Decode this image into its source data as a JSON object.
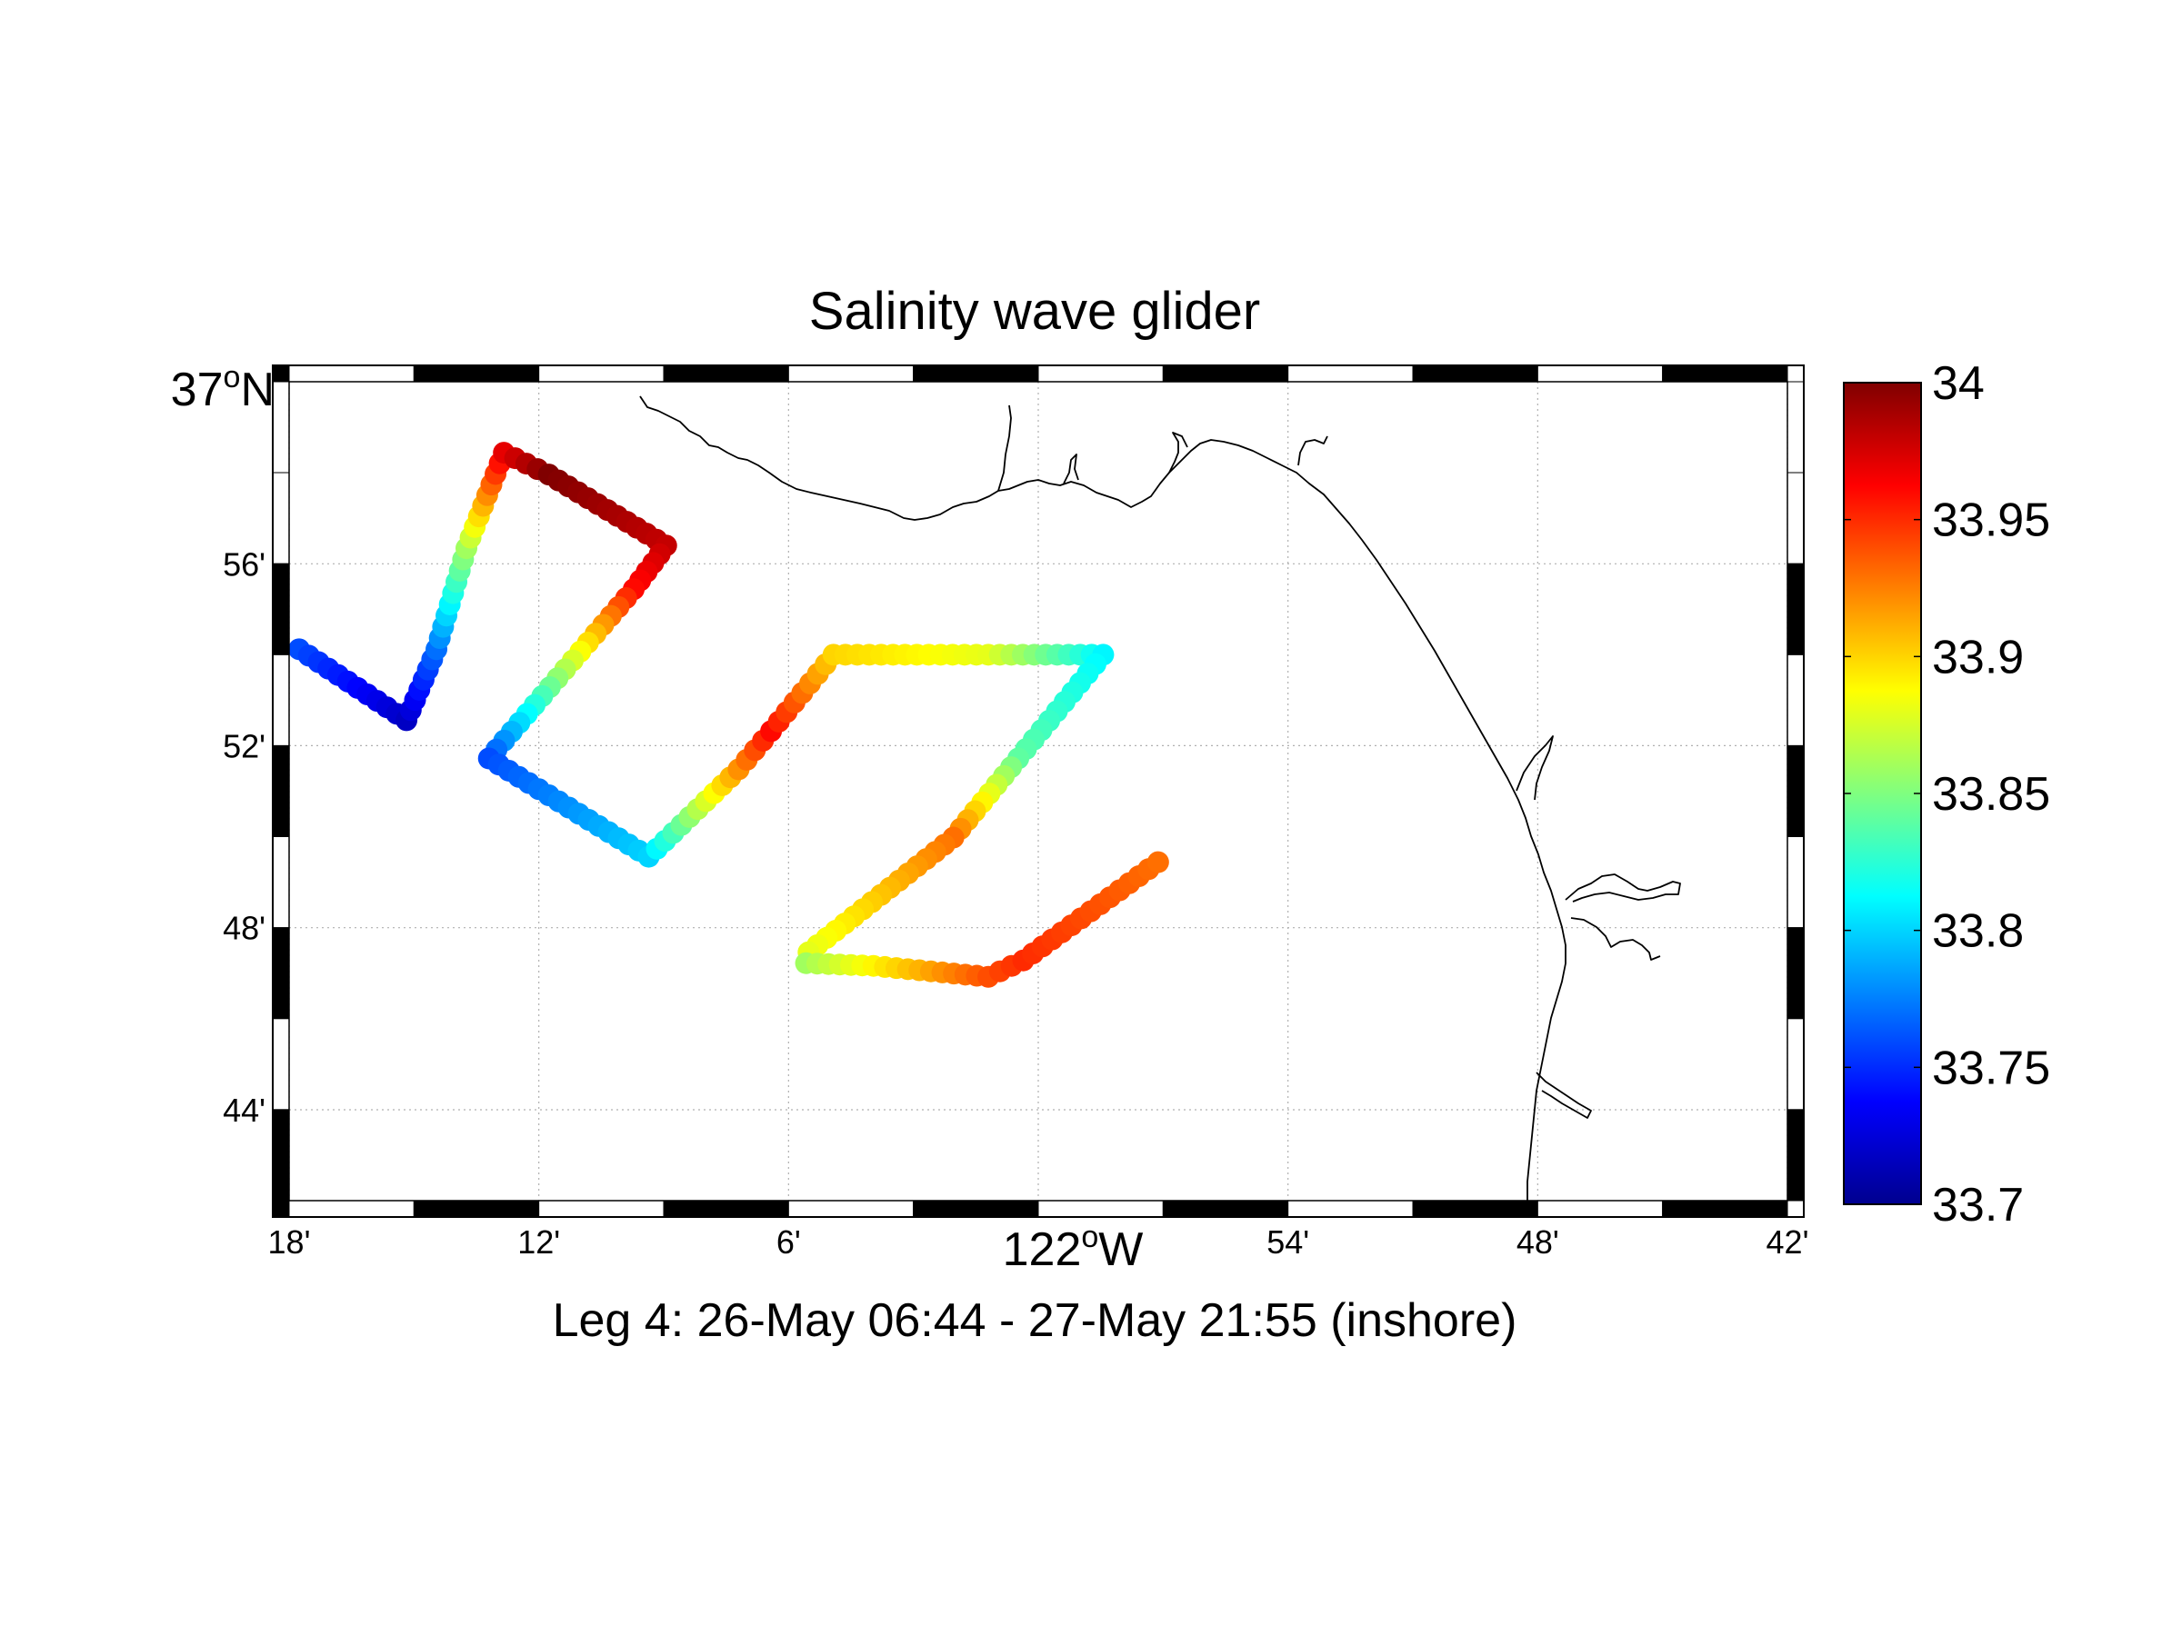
{
  "chart_data": {
    "type": "scatter",
    "title": "Salinity wave glider",
    "xlabel": "122",
    "xlabel_degree": "o",
    "xlabel_suffix": "W",
    "ylabel_top": "37",
    "ylabel_top_degree": "o",
    "ylabel_top_suffix": "N",
    "subtitle": "Leg 4: 26-May 06:44 - 27-May 21:55 (inshore)",
    "xlim": [
      -122.3,
      -121.7
    ],
    "ylim": [
      36.7,
      37.0
    ],
    "x_ticks": [
      {
        "value": -122.3,
        "label": "18'"
      },
      {
        "value": -122.2,
        "label": "12'"
      },
      {
        "value": -122.1,
        "label": "6'"
      },
      {
        "value": -121.9,
        "label": "54'"
      },
      {
        "value": -121.8,
        "label": "48'"
      },
      {
        "value": -121.7,
        "label": "42'"
      }
    ],
    "y_ticks": [
      {
        "value": 36.7333,
        "label": "44'"
      },
      {
        "value": 36.8,
        "label": "48'"
      },
      {
        "value": 36.8667,
        "label": "52'"
      },
      {
        "value": 36.9333,
        "label": "56'"
      }
    ],
    "grid": true,
    "colorbar": {
      "colormap": "jet",
      "min": 33.7,
      "max": 34.0,
      "ticks": [
        "34",
        "33.95",
        "33.9",
        "33.85",
        "33.8",
        "33.75",
        "33.7"
      ]
    },
    "track_vertices": [
      {
        "lon": -122.296,
        "lat": 36.902,
        "salinity": 33.76
      },
      {
        "lon": -122.253,
        "lat": 36.876,
        "salinity": 33.72
      },
      {
        "lon": -122.241,
        "lat": 36.902,
        "salinity": 33.77
      },
      {
        "lon": -122.229,
        "lat": 36.939,
        "salinity": 33.86
      },
      {
        "lon": -122.214,
        "lat": 36.974,
        "salinity": 33.97
      },
      {
        "lon": -122.196,
        "lat": 36.966,
        "salinity": 34.0
      },
      {
        "lon": -122.149,
        "lat": 36.94,
        "salinity": 33.98
      },
      {
        "lon": -122.162,
        "lat": 36.924,
        "salinity": 33.96
      },
      {
        "lon": -122.22,
        "lat": 36.862,
        "salinity": 33.76
      },
      {
        "lon": -122.156,
        "lat": 36.826,
        "salinity": 33.8
      },
      {
        "lon": -122.12,
        "lat": 36.858,
        "salinity": 33.92
      },
      {
        "lon": -122.107,
        "lat": 36.872,
        "salinity": 33.96
      },
      {
        "lon": -122.082,
        "lat": 36.9,
        "salinity": 33.9
      },
      {
        "lon": -122.02,
        "lat": 36.9,
        "salinity": 33.88
      },
      {
        "lon": -121.974,
        "lat": 36.9,
        "salinity": 33.81
      },
      {
        "lon": -122.008,
        "lat": 36.862,
        "salinity": 33.84
      },
      {
        "lon": -122.034,
        "lat": 36.833,
        "salinity": 33.93
      },
      {
        "lon": -122.092,
        "lat": 36.791,
        "salinity": 33.88
      },
      {
        "lon": -122.093,
        "lat": 36.787,
        "salinity": 33.86
      },
      {
        "lon": -122.066,
        "lat": 36.786,
        "salinity": 33.89
      },
      {
        "lon": -122.02,
        "lat": 36.782,
        "salinity": 33.94
      },
      {
        "lon": -122.006,
        "lat": 36.788,
        "salinity": 33.95
      },
      {
        "lon": -121.952,
        "lat": 36.824,
        "salinity": 33.93
      }
    ]
  }
}
